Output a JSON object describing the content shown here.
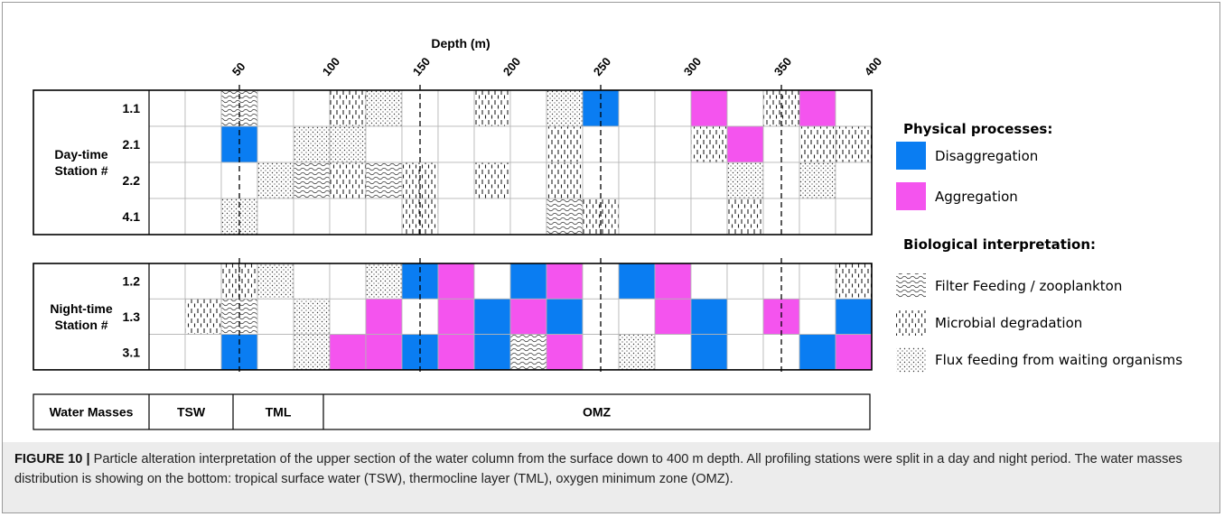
{
  "axis": {
    "title": "Depth (m)",
    "ticks": [
      50,
      100,
      150,
      200,
      250,
      300,
      350,
      400
    ]
  },
  "panels": [
    {
      "label": [
        "Day-time",
        "Station #"
      ],
      "rows": [
        {
          "station": "1.1",
          "cells": [
            null,
            null,
            "Filter Feeding / zooplankton",
            null,
            null,
            "Microbial degradation",
            "Flux feeding from waiting organisms",
            null,
            null,
            "Microbial degradation",
            null,
            "Flux feeding from waiting organisms",
            "Disaggregation",
            null,
            null,
            "Aggregation",
            null,
            "Microbial degradation",
            "Aggregation",
            null
          ]
        },
        {
          "station": "2.1",
          "cells": [
            null,
            null,
            "Disaggregation",
            null,
            "Flux feeding from waiting organisms",
            "Flux feeding from waiting organisms",
            null,
            null,
            null,
            null,
            null,
            "Microbial degradation",
            null,
            null,
            null,
            "Microbial degradation",
            "Aggregation",
            null,
            "Microbial degradation",
            "Microbial degradation"
          ]
        },
        {
          "station": "2.2",
          "cells": [
            null,
            null,
            null,
            "Flux feeding from waiting organisms",
            "Filter Feeding / zooplankton",
            "Microbial degradation",
            "Filter Feeding / zooplankton",
            "Microbial degradation",
            null,
            "Microbial degradation",
            null,
            "Microbial degradation",
            null,
            null,
            null,
            null,
            "Flux feeding from waiting organisms",
            null,
            "Flux feeding from waiting organisms",
            null
          ]
        },
        {
          "station": "4.1",
          "cells": [
            null,
            null,
            "Flux feeding from waiting organisms",
            null,
            null,
            null,
            null,
            "Microbial degradation",
            null,
            null,
            null,
            "Filter Feeding / zooplankton",
            "Microbial degradation",
            null,
            null,
            null,
            "Microbial degradation",
            null,
            null,
            null
          ]
        }
      ]
    },
    {
      "label": [
        "Night-time",
        "Station #"
      ],
      "rows": [
        {
          "station": "1.2",
          "cells": [
            null,
            null,
            "Microbial degradation",
            "Flux feeding from waiting organisms",
            null,
            null,
            "Flux feeding from waiting organisms",
            "Disaggregation",
            "Aggregation",
            null,
            "Disaggregation",
            "Aggregation",
            null,
            "Disaggregation",
            "Aggregation",
            null,
            null,
            null,
            null,
            "Microbial degradation"
          ]
        },
        {
          "station": "1.3",
          "cells": [
            null,
            "Microbial degradation",
            "Filter Feeding / zooplankton",
            null,
            "Flux feeding from waiting organisms",
            null,
            "Aggregation",
            null,
            "Aggregation",
            "Disaggregation",
            "Aggregation",
            "Disaggregation",
            null,
            null,
            "Aggregation",
            "Disaggregation",
            null,
            "Aggregation",
            null,
            "Disaggregation"
          ]
        },
        {
          "station": "3.1",
          "cells": [
            null,
            null,
            "Disaggregation",
            null,
            "Flux feeding from waiting organisms",
            "Aggregation",
            "Aggregation",
            "Disaggregation",
            "Aggregation",
            "Disaggregation",
            "Filter Feeding / zooplankton",
            "Aggregation",
            null,
            "Flux feeding from waiting organisms",
            null,
            "Disaggregation",
            null,
            null,
            "Disaggregation",
            "Aggregation"
          ]
        }
      ]
    }
  ],
  "legend": {
    "physical": {
      "title": "Physical processes:",
      "items": [
        "Disaggregation",
        "Aggregation"
      ]
    },
    "biological": {
      "title": "Biological interpretation:",
      "items": [
        "Filter Feeding / zooplankton",
        "Microbial degradation",
        "Flux feeding from waiting organisms"
      ]
    }
  },
  "water_masses": {
    "label": "Water Masses",
    "items": [
      "TSW",
      "TML",
      "OMZ"
    ]
  },
  "caption": {
    "lead": "FIGURE 10 |",
    "text": "Particle alteration interpretation of the upper section of the water column from the surface down to 400 m depth. All profiling stations were split in a day and night period. The water masses distribution is showing on the bottom: tropical surface water (TSW), thermocline layer (TML), oxygen minimum zone (OMZ)."
  }
}
